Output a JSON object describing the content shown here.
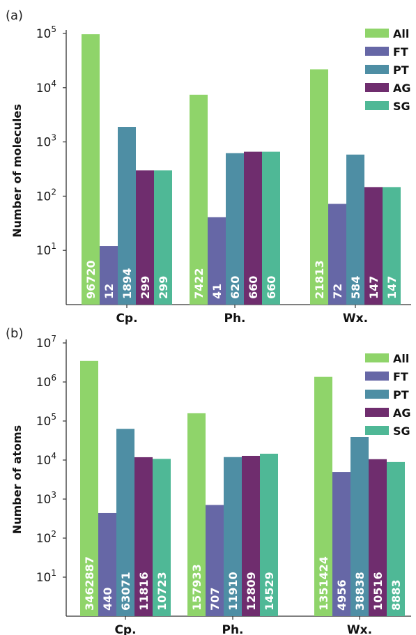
{
  "chart_data": [
    {
      "type": "bar",
      "panel_label": "(a)",
      "ylabel": "Number of molecules",
      "yscale": "log",
      "ylim": [
        1,
        100000
      ],
      "yticks": [
        {
          "exp": "1",
          "value": 10
        },
        {
          "exp": "2",
          "value": 100
        },
        {
          "exp": "3",
          "value": 1000
        },
        {
          "exp": "4",
          "value": 10000
        },
        {
          "exp": "5",
          "value": 100000
        }
      ],
      "categories": [
        "Cp.",
        "Ph.",
        "Wx."
      ],
      "series": [
        {
          "name": "All",
          "color": "#8fd46a",
          "values": [
            96720,
            7422,
            21813
          ]
        },
        {
          "name": "FT",
          "color": "#6667a6",
          "values": [
            12,
            41,
            72
          ]
        },
        {
          "name": "PT",
          "color": "#4e8ea4",
          "values": [
            1894,
            620,
            584
          ]
        },
        {
          "name": "AG",
          "color": "#6f2d6e",
          "values": [
            299,
            660,
            147
          ]
        },
        {
          "name": "SG",
          "color": "#4fb896",
          "values": [
            299,
            660,
            147
          ]
        }
      ],
      "legend_position": "top-right"
    },
    {
      "type": "bar",
      "panel_label": "(b)",
      "ylabel": "Number of atoms",
      "yscale": "log",
      "ylim": [
        1,
        10000000
      ],
      "yticks": [
        {
          "exp": "1",
          "value": 10
        },
        {
          "exp": "2",
          "value": 100
        },
        {
          "exp": "3",
          "value": 1000
        },
        {
          "exp": "4",
          "value": 10000
        },
        {
          "exp": "5",
          "value": 100000
        },
        {
          "exp": "6",
          "value": 1000000
        },
        {
          "exp": "7",
          "value": 10000000
        }
      ],
      "categories": [
        "Cp.",
        "Ph.",
        "Wx."
      ],
      "series": [
        {
          "name": "All",
          "color": "#8fd46a",
          "values": [
            3462887,
            157933,
            1351424
          ]
        },
        {
          "name": "FT",
          "color": "#6667a6",
          "values": [
            440,
            707,
            4956
          ]
        },
        {
          "name": "PT",
          "color": "#4e8ea4",
          "values": [
            63071,
            11910,
            38838
          ]
        },
        {
          "name": "AG",
          "color": "#6f2d6e",
          "values": [
            11816,
            12809,
            10516
          ]
        },
        {
          "name": "SG",
          "color": "#4fb896",
          "values": [
            10723,
            14529,
            8883
          ]
        }
      ],
      "legend_position": "top-right"
    }
  ]
}
